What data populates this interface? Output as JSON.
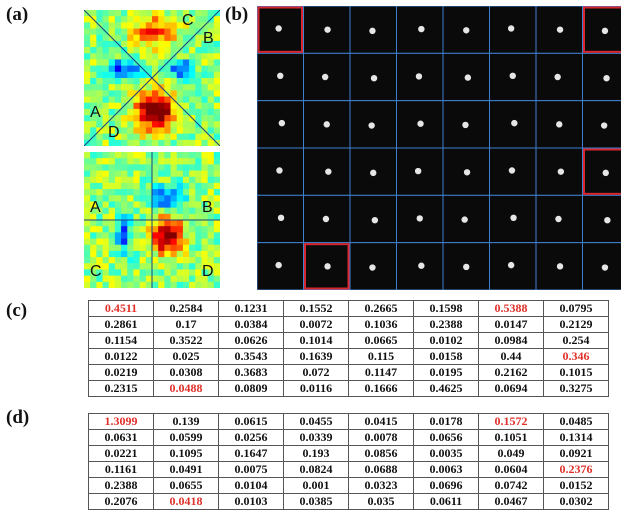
{
  "panels": {
    "a": {
      "label": "(a)",
      "top_quadrants": [
        "A",
        "B",
        "C",
        "D"
      ],
      "bottom_quadrants": [
        "A",
        "B",
        "C",
        "D"
      ]
    },
    "b": {
      "label": "(b)",
      "grid_rows": 6,
      "grid_cols": 8,
      "highlighted_cells": [
        [
          0,
          0
        ],
        [
          0,
          7
        ],
        [
          3,
          7
        ],
        [
          5,
          1
        ]
      ]
    },
    "c": {
      "label": "(c)",
      "rows": [
        [
          "0.4511",
          "0.2584",
          "0.1231",
          "0.1552",
          "0.2665",
          "0.1598",
          "0.5388",
          "0.0795"
        ],
        [
          "0.2861",
          "0.17",
          "0.0384",
          "0.0072",
          "0.1036",
          "0.2388",
          "0.0147",
          "0.2129"
        ],
        [
          "0.1154",
          "0.3522",
          "0.0626",
          "0.1014",
          "0.0665",
          "0.0102",
          "0.0984",
          "0.254"
        ],
        [
          "0.0122",
          "0.025",
          "0.3543",
          "0.1639",
          "0.115",
          "0.0158",
          "0.44",
          "0.346"
        ],
        [
          "0.0219",
          "0.0308",
          "0.3683",
          "0.072",
          "0.1147",
          "0.0195",
          "0.2162",
          "0.1015"
        ],
        [
          "0.2315",
          "0.0488",
          "0.0809",
          "0.0116",
          "0.1666",
          "0.4625",
          "0.0694",
          "0.3275"
        ]
      ],
      "highlighted": [
        [
          0,
          0
        ],
        [
          0,
          6
        ],
        [
          3,
          7
        ],
        [
          5,
          1
        ]
      ]
    },
    "d": {
      "label": "(d)",
      "rows": [
        [
          "1.3099",
          "0.139",
          "0.0615",
          "0.0455",
          "0.0415",
          "0.0178",
          "0.1572",
          "0.0485"
        ],
        [
          "0.0631",
          "0.0599",
          "0.0256",
          "0.0339",
          "0.0078",
          "0.0656",
          "0.1051",
          "0.1314"
        ],
        [
          "0.0221",
          "0.1095",
          "0.1647",
          "0.193",
          "0.0856",
          "0.0035",
          "0.049",
          "0.0921"
        ],
        [
          "0.1161",
          "0.0491",
          "0.0075",
          "0.0824",
          "0.0688",
          "0.0063",
          "0.0604",
          "0.2376"
        ],
        [
          "0.2388",
          "0.0655",
          "0.0104",
          "0.001",
          "0.0323",
          "0.0696",
          "0.0742",
          "0.0152"
        ],
        [
          "0.2076",
          "0.0418",
          "0.0103",
          "0.0385",
          "0.035",
          "0.0611",
          "0.0467",
          "0.0302"
        ]
      ],
      "highlighted": [
        [
          0,
          0
        ],
        [
          0,
          6
        ],
        [
          3,
          7
        ],
        [
          5,
          1
        ]
      ]
    }
  },
  "colors": {
    "highlight_text": "#e0302a",
    "grid_line": "#3f7fd0",
    "highlight_box": "#d8262e",
    "spot_bg": "#0a0a0a"
  }
}
